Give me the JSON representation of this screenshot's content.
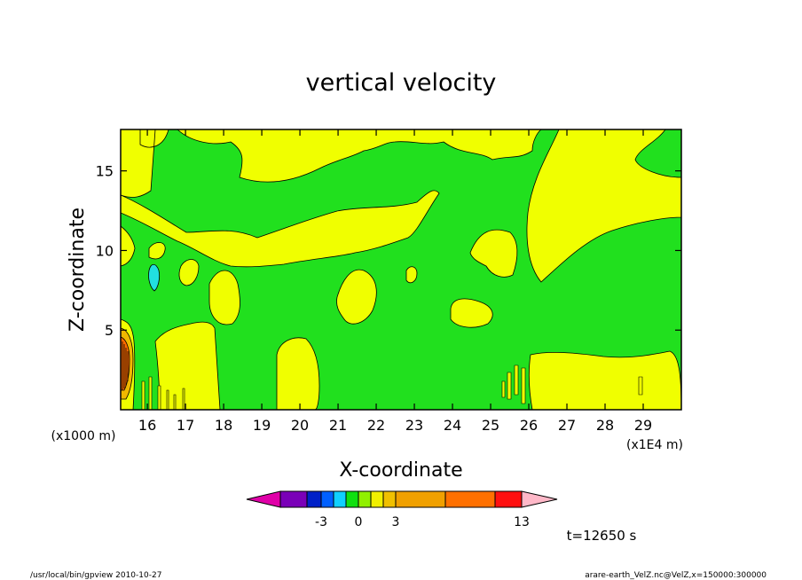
{
  "chart_data": {
    "type": "heatmap",
    "title": "vertical velocity",
    "xlabel": "X-coordinate",
    "ylabel": "Z-coordinate",
    "x_unit": "(x1E4 m)",
    "y_unit": "(x1000 m)",
    "xlim": [
      15.3,
      30.0
    ],
    "ylim": [
      0.0,
      17.6
    ],
    "x_ticks": [
      "16",
      "17",
      "18",
      "19",
      "20",
      "21",
      "22",
      "23",
      "24",
      "25",
      "26",
      "27",
      "28",
      "29"
    ],
    "y_ticks": [
      "5",
      "10",
      "15"
    ],
    "colors": {
      "green": "#21e01e",
      "yellow": "#f0ff00",
      "cyan": "#21e0e0",
      "orange": "#ff6a00",
      "gold": "#f0b800"
    },
    "colorbar": {
      "colors": [
        "#e000a8",
        "#7a00b8",
        "#0020c8",
        "#0060ff",
        "#10d0ff",
        "#10e010",
        "#90f000",
        "#f0f000",
        "#f0c000",
        "#f0a000",
        "#ff7000",
        "#ff1010",
        "#f87878",
        "#ffb8c8"
      ],
      "labels": [
        "-3",
        "0",
        "3",
        "13"
      ]
    },
    "time_label": "t=12650 s"
  },
  "footer": {
    "left": "/usr/local/bin/gpview   2010-10-27",
    "right": "arare-earth_VelZ.nc@VelZ,x=150000:300000"
  }
}
